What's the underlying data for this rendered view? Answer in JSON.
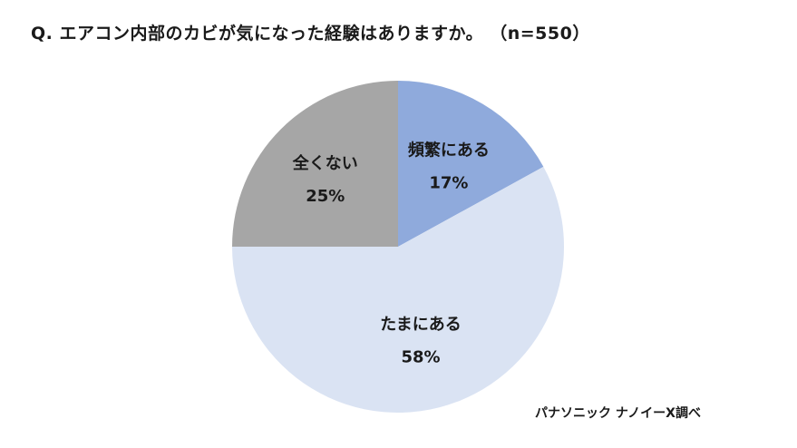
{
  "title": "Q. エアコン内部のカビが気になった経験はありますか。 （n=550）",
  "source": "パナソニック ナノイーX調べ",
  "chart_data": {
    "type": "pie",
    "title": "Q. エアコン内部のカビが気になった経験はありますか。 （n=550）",
    "n": 550,
    "unit": "%",
    "slices": [
      {
        "label": "頻繁にある",
        "value": 17,
        "value_label": "17%",
        "color": "#8faadc"
      },
      {
        "label": "たまにある",
        "value": 58,
        "value_label": "58%",
        "color": "#dae3f3"
      },
      {
        "label": "全くない",
        "value": 25,
        "value_label": "25%",
        "color": "#a6a6a6"
      }
    ],
    "start_angle": "12 o'clock",
    "direction": "clockwise",
    "legend": "none"
  }
}
